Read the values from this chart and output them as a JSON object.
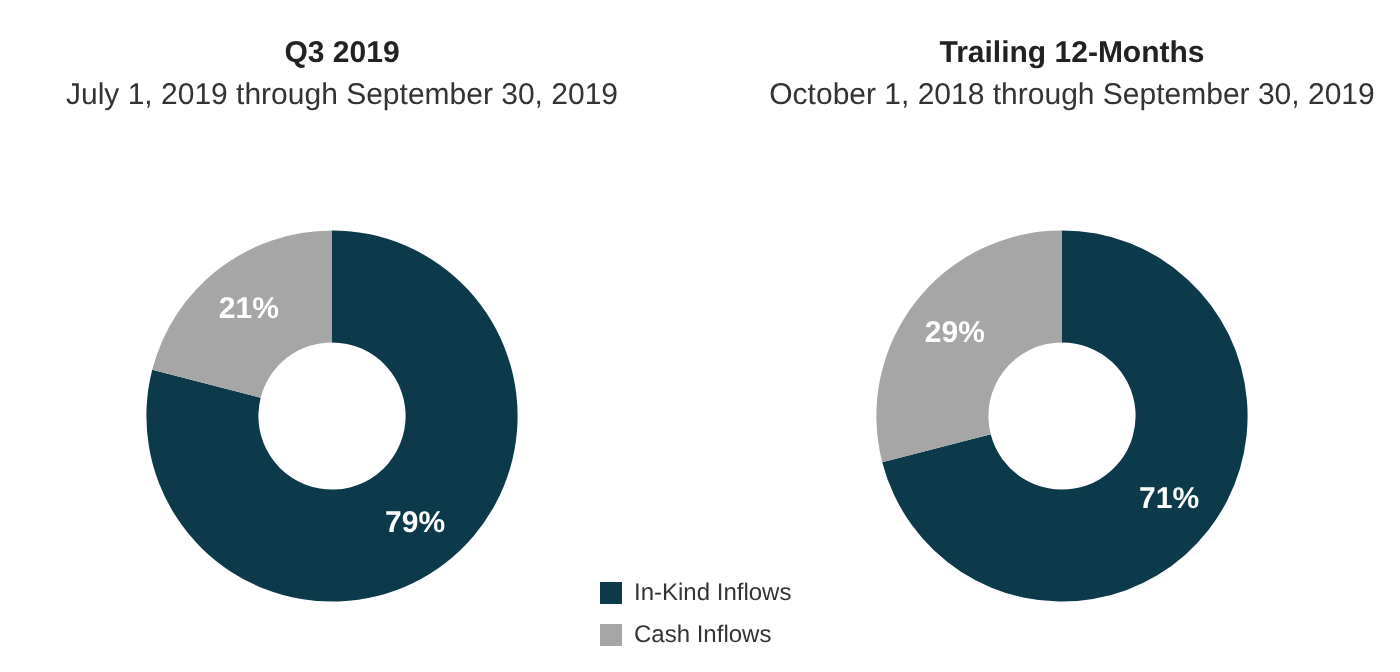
{
  "chart_data": [
    {
      "type": "donut",
      "title": "Q3 2019",
      "subtitle": "July 1, 2019 through September 30, 2019",
      "categories": [
        "In-Kind Inflows",
        "Cash Inflows"
      ],
      "values": [
        79,
        21
      ],
      "colors": [
        "#0c3a4b",
        "#a6a6a6"
      ],
      "value_labels": [
        "79%",
        "21%"
      ],
      "legend": "bottom right"
    },
    {
      "type": "donut",
      "title": "Trailing 12-Months",
      "subtitle": "October 1, 2018 through September 30, 2019",
      "categories": [
        null,
        null
      ],
      "values": [
        71,
        29
      ],
      "colors": [
        "#0c3a4b",
        "#a6a6a6"
      ],
      "value_labels": [
        "71%",
        "29%"
      ]
    }
  ]
}
